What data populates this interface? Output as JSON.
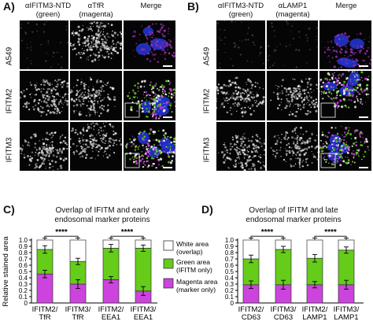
{
  "panels": {
    "A": {
      "letter": "A)",
      "columns": [
        "αIFITM3-NTD",
        "(green)",
        "αTfR",
        "(magenta)",
        "Merge"
      ],
      "rows": [
        "A549",
        "IFITM2",
        "IFITM3"
      ]
    },
    "B": {
      "letter": "B)",
      "columns": [
        "αIFITM3-NTD",
        "(green)",
        "αLAMP1",
        "(magenta)",
        "Merge"
      ],
      "rows": [
        "A549",
        "IFITM2",
        "IFITM3"
      ]
    },
    "C": {
      "letter": "C)",
      "title_line1": "Overlap of IFITM and early",
      "title_line2": "endosomal marker proteins"
    },
    "D": {
      "letter": "D)",
      "title_line1": "Overlap of IFITM and late",
      "title_line2": "endosomal marker proteins"
    }
  },
  "legend": {
    "white": [
      "White area",
      "(overlap)"
    ],
    "green": [
      "Green area",
      "(IFITM only)"
    ],
    "magenta": [
      "Magenta area",
      "(marker only)"
    ]
  },
  "colors": {
    "white": "#ffffff",
    "green": "#66cc1a",
    "magenta": "#cc44dd",
    "micro_bg": "#050505",
    "merge_blue": "#2233cc"
  },
  "chart_data": [
    {
      "type": "bar",
      "stacked": true,
      "ylabel": "Relative stained area",
      "ylim": [
        0,
        1.0
      ],
      "yticks": [
        "0",
        "0.1",
        "0.2",
        "0.3",
        "0.4",
        "0.5",
        "0.6",
        "0.7",
        "0.8",
        "0.9",
        "1.0"
      ],
      "categories": [
        [
          "IFITM2/",
          "TfR"
        ],
        [
          "IFITM3/",
          "TfR"
        ],
        [
          "IFITM2/",
          "EEA1"
        ],
        [
          "IFITM3/",
          "EEA1"
        ]
      ],
      "series": [
        {
          "name": "Magenta area (marker only)",
          "values": [
            0.46,
            0.3,
            0.37,
            0.19
          ]
        },
        {
          "name": "Green area (IFITM only)",
          "values": [
            0.39,
            0.36,
            0.5,
            0.68
          ]
        },
        {
          "name": "White area (overlap)",
          "values": [
            0.15,
            0.34,
            0.13,
            0.13
          ]
        }
      ],
      "significance": [
        {
          "from": 0,
          "to": 1,
          "label": "****"
        },
        {
          "from": 2,
          "to": 3,
          "label": "****"
        }
      ]
    },
    {
      "type": "bar",
      "stacked": true,
      "ylabel": "",
      "ylim": [
        0,
        1.0
      ],
      "yticks": [
        "0",
        "0.1",
        "0.2",
        "0.3",
        "0.4",
        "0.5",
        "0.6",
        "0.7",
        "0.8",
        "0.9",
        "1.0"
      ],
      "categories": [
        [
          "IFITM2/",
          "CD63"
        ],
        [
          "IFITM3/",
          "CD63"
        ],
        [
          "IFITM2/",
          "LAMP1"
        ],
        [
          "IFITM3/",
          "LAMP1"
        ]
      ],
      "series": [
        {
          "name": "Magenta area (marker only)",
          "values": [
            0.29,
            0.29,
            0.29,
            0.29
          ]
        },
        {
          "name": "Green area (IFITM only)",
          "values": [
            0.41,
            0.56,
            0.42,
            0.55
          ]
        },
        {
          "name": "White area (overlap)",
          "values": [
            0.3,
            0.15,
            0.29,
            0.16
          ]
        }
      ],
      "significance": [
        {
          "from": 0,
          "to": 1,
          "label": "****"
        },
        {
          "from": 2,
          "to": 3,
          "label": "****"
        }
      ]
    }
  ]
}
